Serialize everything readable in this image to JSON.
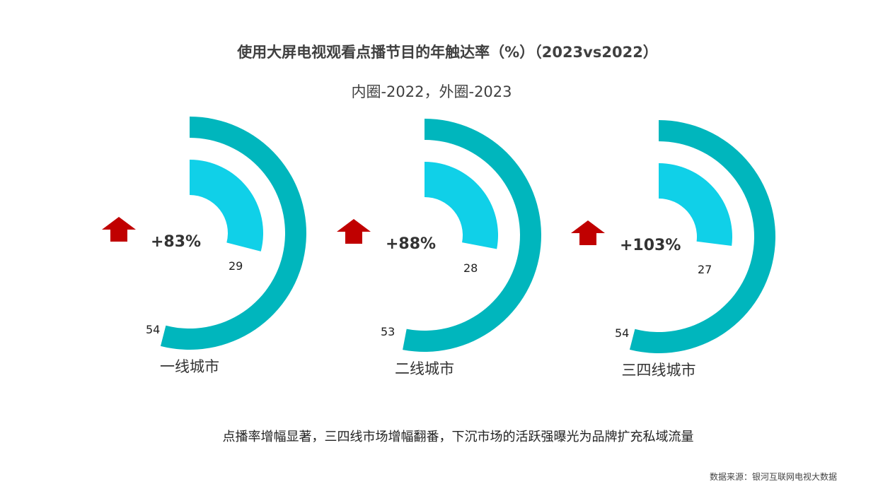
{
  "header": {
    "title": "使用大屏电视观看点播节目的年触达率（%）（2023vs2022）",
    "subtitle": "内圈-2022，外圈-2023"
  },
  "colors": {
    "outer": "#00b6bd",
    "inner": "#10d0e8",
    "arrow": "#c00000"
  },
  "chart_data": {
    "type": "pie",
    "series": [
      {
        "name": "2022",
        "ring": "inner"
      },
      {
        "name": "2023",
        "ring": "outer"
      }
    ],
    "groups": [
      {
        "label": "一线城市",
        "inner": 29,
        "outer": 54,
        "growth": "+83%"
      },
      {
        "label": "二线城市",
        "inner": 28,
        "outer": 53,
        "growth": "+88%"
      },
      {
        "label": "三四线城市",
        "inner": 27,
        "outer": 54,
        "growth": "+103%"
      }
    ]
  },
  "footer": {
    "note": "点播率增幅显著，三四线市场增幅翻番，下沉市场的活跃强曝光为品牌扩充私域流量",
    "source": "数据来源：银河互联网电视大数据"
  }
}
